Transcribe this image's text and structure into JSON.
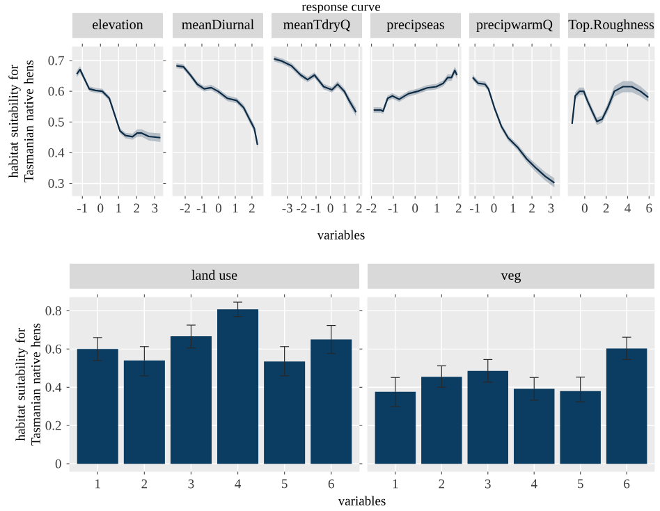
{
  "chart_data": [
    {
      "type": "line",
      "title": "elevation",
      "ylabel": "habitat suitability for Tasmanian native hens",
      "x": [
        -1.31,
        -1.13,
        -0.92,
        -0.62,
        -0.28,
        0.1,
        0.49,
        0.74,
        1.08,
        1.38,
        1.77,
        2.03,
        2.28,
        2.67,
        3.31
      ],
      "series": [
        {
          "color": "#0d2b45",
          "values": [
            0.656,
            0.671,
            0.645,
            0.608,
            0.603,
            0.6,
            0.577,
            0.532,
            0.471,
            0.456,
            0.452,
            0.464,
            0.464,
            0.453,
            0.449
          ],
          "lower": [
            0.645,
            0.66,
            0.637,
            0.6,
            0.595,
            0.592,
            0.569,
            0.524,
            0.463,
            0.447,
            0.442,
            0.452,
            0.452,
            0.44,
            0.435
          ],
          "upper": [
            0.667,
            0.682,
            0.653,
            0.616,
            0.611,
            0.608,
            0.585,
            0.54,
            0.479,
            0.465,
            0.462,
            0.476,
            0.476,
            0.466,
            0.463
          ]
        }
      ],
      "xlim": [
        -1.55,
        3.45
      ],
      "ylim": [
        0.26,
        0.745
      ],
      "xticks": [
        -1,
        0,
        1,
        2,
        3
      ],
      "yticks": [
        0.3,
        0.4,
        0.5,
        0.6,
        0.7
      ],
      "grid": true
    },
    {
      "type": "line",
      "title": "meanDiurnal",
      "x": [
        -2.53,
        -2.11,
        -1.69,
        -1.28,
        -0.86,
        -0.44,
        -0.03,
        0.53,
        1.08,
        1.5,
        1.92,
        2.14,
        2.33
      ],
      "series": [
        {
          "color": "#0d2b45",
          "values": [
            0.683,
            0.68,
            0.653,
            0.623,
            0.608,
            0.612,
            0.6,
            0.577,
            0.57,
            0.547,
            0.502,
            0.479,
            0.426
          ],
          "lower": [
            0.675,
            0.672,
            0.645,
            0.614,
            0.599,
            0.603,
            0.591,
            0.568,
            0.561,
            0.537,
            0.491,
            0.467,
            0.413
          ],
          "upper": [
            0.691,
            0.688,
            0.661,
            0.632,
            0.617,
            0.621,
            0.609,
            0.586,
            0.579,
            0.557,
            0.513,
            0.491,
            0.439
          ]
        }
      ],
      "xlim": [
        -2.75,
        2.67
      ],
      "ylim": [
        0.26,
        0.745
      ],
      "xticks": [
        -2,
        -1,
        0,
        1,
        2
      ],
      "yticks": [
        0.3,
        0.4,
        0.5,
        0.6,
        0.7
      ],
      "grid": true,
      "tick_labels": "x"
    },
    {
      "type": "line",
      "title": "meanTdryQ",
      "xlabel": "variables",
      "annotations": [
        "response curve"
      ],
      "x": [
        -3.93,
        -3.36,
        -2.71,
        -2.07,
        -1.59,
        -1.11,
        -0.47,
        0.11,
        0.5,
        0.97,
        1.3,
        1.78
      ],
      "series": [
        {
          "color": "#0d2b45",
          "values": [
            0.706,
            0.698,
            0.683,
            0.653,
            0.638,
            0.653,
            0.615,
            0.605,
            0.623,
            0.6,
            0.57,
            0.532
          ],
          "lower": [
            0.697,
            0.689,
            0.674,
            0.644,
            0.629,
            0.644,
            0.606,
            0.596,
            0.613,
            0.59,
            0.558,
            0.518
          ],
          "upper": [
            0.715,
            0.707,
            0.692,
            0.662,
            0.647,
            0.662,
            0.624,
            0.614,
            0.633,
            0.61,
            0.582,
            0.546
          ]
        }
      ],
      "xlim": [
        -4.1,
        2.2
      ],
      "ylim": [
        0.26,
        0.745
      ],
      "xticks": [
        -3,
        -2,
        -1,
        0,
        1,
        2
      ],
      "yticks": [
        0.3,
        0.4,
        0.5,
        0.6,
        0.7
      ],
      "grid": true,
      "tick_labels": "x"
    },
    {
      "type": "line",
      "title": "precipseas",
      "x": [
        -1.9,
        -1.58,
        -1.47,
        -1.26,
        -1.04,
        -0.73,
        -0.31,
        0.12,
        0.55,
        0.97,
        1.29,
        1.5,
        1.67,
        1.82,
        1.92
      ],
      "series": [
        {
          "color": "#0d2b45",
          "values": [
            0.539,
            0.539,
            0.535,
            0.577,
            0.585,
            0.574,
            0.592,
            0.6,
            0.611,
            0.615,
            0.626,
            0.645,
            0.645,
            0.668,
            0.653
          ],
          "lower": [
            0.53,
            0.53,
            0.526,
            0.568,
            0.576,
            0.565,
            0.583,
            0.591,
            0.602,
            0.606,
            0.616,
            0.634,
            0.634,
            0.656,
            0.64
          ],
          "upper": [
            0.548,
            0.548,
            0.544,
            0.586,
            0.594,
            0.583,
            0.601,
            0.609,
            0.62,
            0.624,
            0.636,
            0.656,
            0.656,
            0.68,
            0.666
          ]
        }
      ],
      "xlim": [
        -2.05,
        2.1
      ],
      "ylim": [
        0.26,
        0.745
      ],
      "xticks": [
        -2,
        -1,
        0,
        1,
        2
      ],
      "yticks": [
        0.3,
        0.4,
        0.5,
        0.6,
        0.7
      ],
      "grid": true,
      "tick_labels": "x"
    },
    {
      "type": "line",
      "title": "precipwarmQ",
      "x": [
        -1.12,
        -0.83,
        -0.47,
        -0.29,
        0.02,
        0.39,
        0.75,
        1.24,
        1.72,
        2.21,
        2.7,
        3.18
      ],
      "series": [
        {
          "color": "#0d2b45",
          "values": [
            0.645,
            0.626,
            0.623,
            0.608,
            0.547,
            0.486,
            0.448,
            0.418,
            0.38,
            0.35,
            0.323,
            0.302
          ],
          "lower": [
            0.636,
            0.617,
            0.614,
            0.599,
            0.538,
            0.477,
            0.439,
            0.408,
            0.369,
            0.337,
            0.309,
            0.287
          ],
          "upper": [
            0.654,
            0.635,
            0.632,
            0.617,
            0.556,
            0.495,
            0.457,
            0.428,
            0.391,
            0.363,
            0.337,
            0.317
          ]
        }
      ],
      "xlim": [
        -1.3,
        3.46
      ],
      "ylim": [
        0.26,
        0.745
      ],
      "xticks": [
        -1,
        0,
        1,
        2,
        3
      ],
      "yticks": [
        0.3,
        0.4,
        0.5,
        0.6,
        0.7
      ],
      "grid": true,
      "tick_labels": "x"
    },
    {
      "type": "line",
      "title": "Top.Roughness",
      "x": [
        -1.18,
        -0.89,
        -0.49,
        -0.09,
        0.24,
        0.73,
        1.13,
        1.62,
        2.15,
        2.76,
        3.57,
        4.39,
        5.2,
        5.93
      ],
      "series": [
        {
          "color": "#0d2b45",
          "values": [
            0.494,
            0.585,
            0.6,
            0.6,
            0.57,
            0.532,
            0.502,
            0.509,
            0.547,
            0.6,
            0.615,
            0.615,
            0.6,
            0.58
          ],
          "lower": [
            0.482,
            0.573,
            0.588,
            0.588,
            0.558,
            0.52,
            0.49,
            0.497,
            0.533,
            0.583,
            0.597,
            0.597,
            0.584,
            0.566
          ],
          "upper": [
            0.506,
            0.597,
            0.612,
            0.612,
            0.582,
            0.544,
            0.514,
            0.521,
            0.561,
            0.617,
            0.633,
            0.633,
            0.616,
            0.594
          ]
        }
      ],
      "xlim": [
        -1.55,
        6.5
      ],
      "ylim": [
        0.26,
        0.745
      ],
      "xticks": [
        0,
        2,
        4,
        6
      ],
      "yticks": [
        0.3,
        0.4,
        0.5,
        0.6,
        0.7
      ],
      "grid": true,
      "tick_labels": "x"
    },
    {
      "type": "bar",
      "title": "land use",
      "ylabel": "habitat suitability for Tasmanian native hens",
      "xlabel": "variables",
      "categories": [
        "1",
        "2",
        "3",
        "4",
        "5",
        "6"
      ],
      "color": "#0b3c61",
      "values": [
        0.6,
        0.54,
        0.667,
        0.808,
        0.535,
        0.65
      ],
      "errors": [
        [
          0.54,
          0.66
        ],
        [
          0.46,
          0.613
        ],
        [
          0.606,
          0.725
        ],
        [
          0.77,
          0.845
        ],
        [
          0.46,
          0.613
        ],
        [
          0.577,
          0.723
        ]
      ],
      "ylim": [
        -0.04,
        0.87
      ],
      "yticks": [
        0,
        0.2,
        0.4,
        0.6,
        0.8
      ],
      "grid": true
    },
    {
      "type": "bar",
      "title": "veg",
      "categories": [
        "1",
        "2",
        "3",
        "4",
        "5",
        "6"
      ],
      "color": "#0b3c61",
      "values": [
        0.376,
        0.455,
        0.486,
        0.392,
        0.38,
        0.603
      ],
      "errors": [
        [
          0.3,
          0.451
        ],
        [
          0.4,
          0.512
        ],
        [
          0.427,
          0.545
        ],
        [
          0.333,
          0.451
        ],
        [
          0.324,
          0.453
        ],
        [
          0.545,
          0.662
        ]
      ],
      "ylim": [
        -0.04,
        0.87
      ],
      "yticks": [
        0,
        0.2,
        0.4,
        0.6,
        0.8
      ],
      "grid": true,
      "tick_labels": "x"
    }
  ]
}
